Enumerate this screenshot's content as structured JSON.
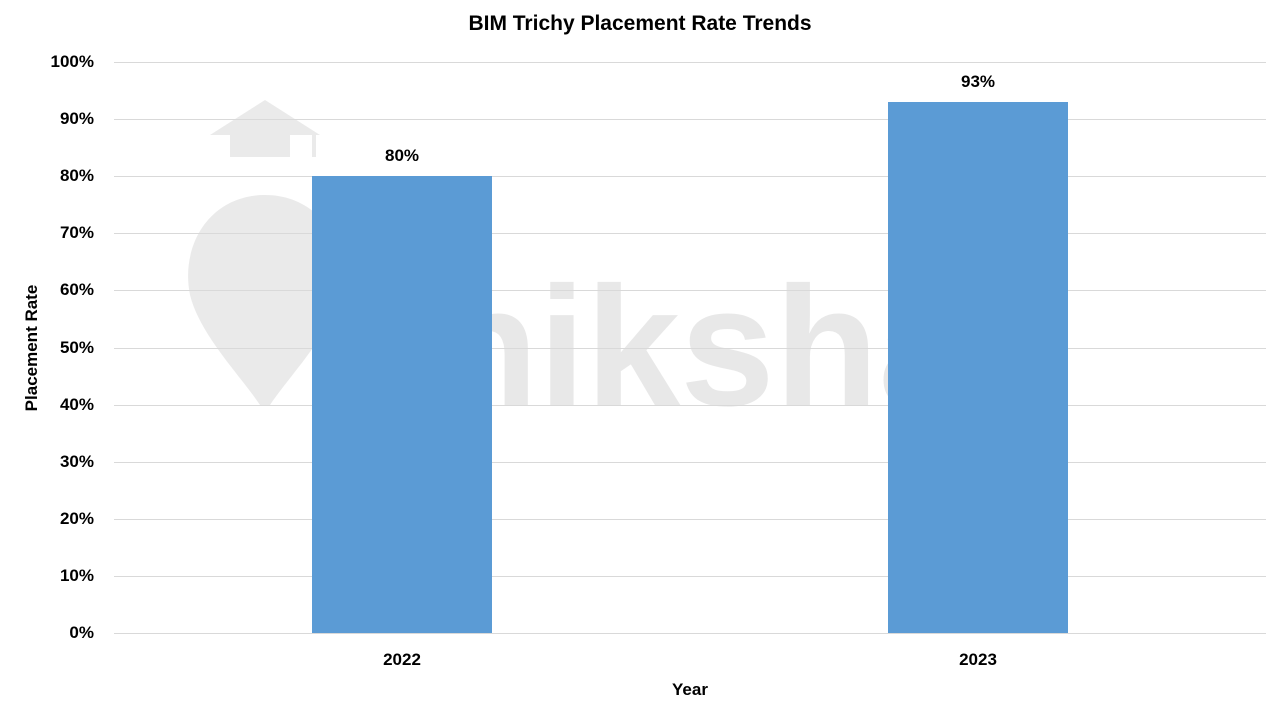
{
  "chart_data": {
    "type": "bar",
    "title": "BIM Trichy Placement Rate Trends",
    "xlabel": "Year",
    "ylabel": "Placement Rate",
    "categories": [
      "2022",
      "2023"
    ],
    "values": [
      80,
      93
    ],
    "data_labels": [
      "80%",
      "93%"
    ],
    "ylim": [
      0,
      100
    ],
    "yticks": [
      "0%",
      "10%",
      "20%",
      "30%",
      "40%",
      "50%",
      "60%",
      "70%",
      "80%",
      "90%",
      "100%"
    ],
    "grid": true,
    "legend": null,
    "bar_color": "#5b9bd5"
  },
  "watermark": {
    "text": "shiksha",
    "icon": "graduation-cap-bulb-icon"
  }
}
